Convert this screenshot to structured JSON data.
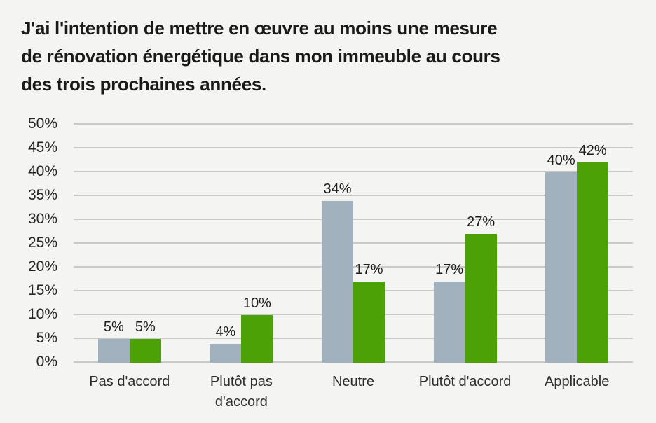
{
  "chart_data": {
    "type": "bar",
    "title": "J'ai l'intention de mettre en œuvre au moins une mesure de rénovation énergétique dans mon immeuble au cours des trois prochaines années.",
    "title_lines": [
      "J'ai l'intention de mettre en œuvre au moins une mesure",
      "de rénovation énergétique dans mon immeuble au cours",
      "des trois prochaines années."
    ],
    "categories": [
      "Pas d'accord",
      "Plutôt pas d'accord",
      "Neutre",
      "Plutôt d'accord",
      "Applicable"
    ],
    "series": [
      {
        "name": "series-gray",
        "color": "#a2b1be",
        "values": [
          5,
          4,
          34,
          17,
          40
        ],
        "value_labels": [
          "5%",
          "4%",
          "34%",
          "17%",
          "40%"
        ]
      },
      {
        "name": "series-green",
        "color": "#4ba106",
        "values": [
          5,
          10,
          17,
          27,
          42
        ],
        "value_labels": [
          "5%",
          "10%",
          "17%",
          "27%",
          "42%"
        ]
      }
    ],
    "xlabel": "",
    "ylabel": "",
    "ylim": [
      0,
      50
    ],
    "y_tick_values": [
      0,
      5,
      10,
      15,
      20,
      25,
      30,
      35,
      40,
      45,
      50
    ],
    "y_tick_labels": [
      "0%",
      "5%",
      "10%",
      "15%",
      "20%",
      "25%",
      "30%",
      "35%",
      "40%",
      "45%",
      "50%"
    ],
    "grid": "horizontal",
    "legend": "none",
    "colors": {
      "background": "#f4f4f2",
      "gridline": "#c9c9c9",
      "bar_gray": "#a2b1be",
      "bar_green": "#4ba106",
      "text": "#1d1d1b"
    }
  }
}
